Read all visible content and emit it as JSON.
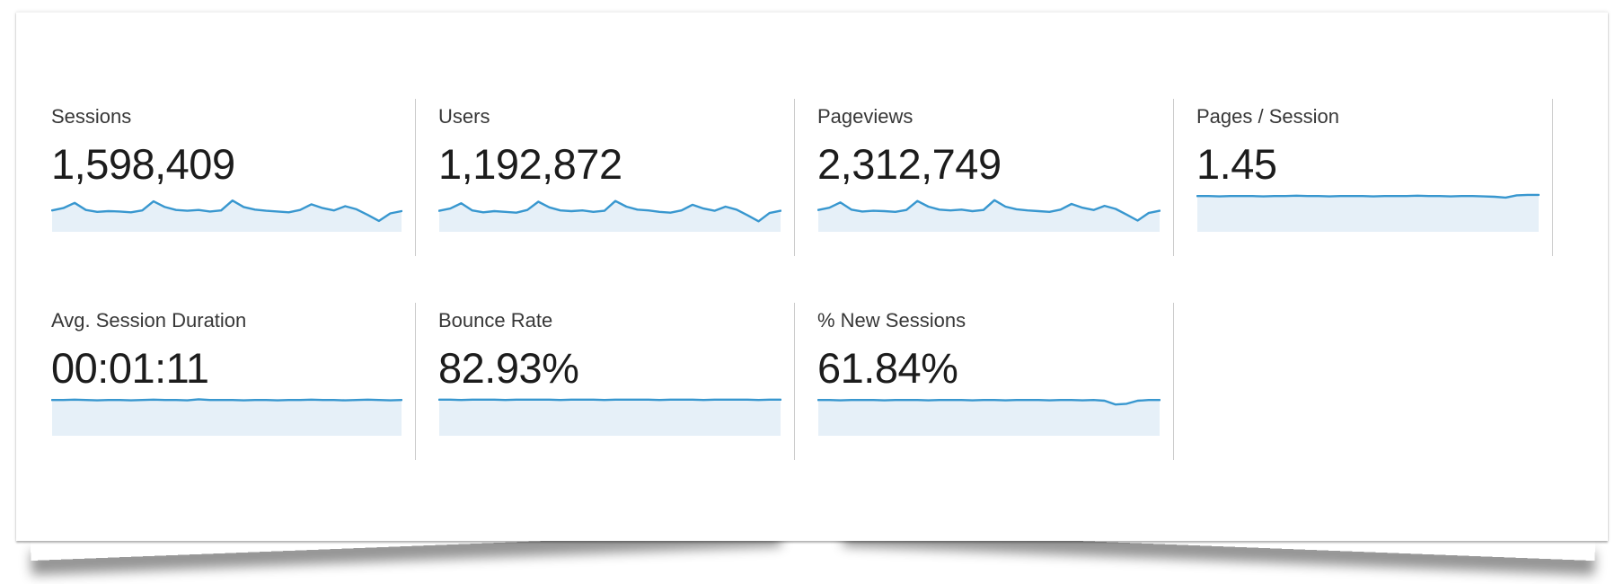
{
  "card": {
    "name": "audience-overview-metrics",
    "rows": [
      {
        "metrics": [
          {
            "id": "sessions",
            "label": "Sessions",
            "value": "1,598,409",
            "spark": [
              0.52,
              0.58,
              0.72,
              0.53,
              0.48,
              0.5,
              0.49,
              0.47,
              0.52,
              0.76,
              0.61,
              0.53,
              0.51,
              0.53,
              0.49,
              0.52,
              0.78,
              0.61,
              0.54,
              0.51,
              0.49,
              0.47,
              0.53,
              0.68,
              0.58,
              0.52,
              0.63,
              0.55,
              0.4,
              0.24,
              0.44,
              0.5
            ]
          },
          {
            "id": "users",
            "label": "Users",
            "value": "1,192,872",
            "spark": [
              0.51,
              0.57,
              0.71,
              0.52,
              0.47,
              0.5,
              0.48,
              0.46,
              0.53,
              0.75,
              0.6,
              0.52,
              0.5,
              0.52,
              0.48,
              0.51,
              0.77,
              0.62,
              0.54,
              0.52,
              0.48,
              0.46,
              0.52,
              0.67,
              0.57,
              0.51,
              0.62,
              0.54,
              0.39,
              0.23,
              0.45,
              0.51
            ]
          },
          {
            "id": "pageviews",
            "label": "Pageviews",
            "value": "2,312,749",
            "spark": [
              0.53,
              0.59,
              0.73,
              0.54,
              0.49,
              0.51,
              0.5,
              0.48,
              0.53,
              0.77,
              0.62,
              0.54,
              0.52,
              0.54,
              0.5,
              0.53,
              0.79,
              0.62,
              0.55,
              0.52,
              0.5,
              0.48,
              0.54,
              0.69,
              0.59,
              0.53,
              0.64,
              0.56,
              0.41,
              0.25,
              0.45,
              0.51
            ]
          },
          {
            "id": "pages-per-session",
            "label": "Pages / Session",
            "value": "1.45",
            "spark": [
              0.9,
              0.9,
              0.89,
              0.9,
              0.9,
              0.9,
              0.89,
              0.9,
              0.9,
              0.91,
              0.9,
              0.9,
              0.89,
              0.9,
              0.9,
              0.9,
              0.89,
              0.9,
              0.9,
              0.9,
              0.91,
              0.9,
              0.9,
              0.89,
              0.9,
              0.9,
              0.89,
              0.88,
              0.86,
              0.92,
              0.93,
              0.93
            ]
          }
        ]
      },
      {
        "metrics": [
          {
            "id": "avg-session-duration",
            "label": "Avg. Session Duration",
            "value": "00:01:11",
            "spark": [
              0.9,
              0.9,
              0.91,
              0.9,
              0.89,
              0.9,
              0.9,
              0.89,
              0.9,
              0.91,
              0.9,
              0.9,
              0.89,
              0.92,
              0.9,
              0.9,
              0.9,
              0.89,
              0.9,
              0.9,
              0.89,
              0.9,
              0.9,
              0.91,
              0.9,
              0.9,
              0.89,
              0.9,
              0.91,
              0.9,
              0.89,
              0.9
            ]
          },
          {
            "id": "bounce-rate",
            "label": "Bounce Rate",
            "value": "82.93%",
            "spark": [
              0.91,
              0.91,
              0.9,
              0.91,
              0.91,
              0.91,
              0.9,
              0.91,
              0.91,
              0.91,
              0.91,
              0.9,
              0.91,
              0.91,
              0.91,
              0.9,
              0.91,
              0.91,
              0.91,
              0.91,
              0.9,
              0.91,
              0.91,
              0.91,
              0.9,
              0.91,
              0.91,
              0.91,
              0.91,
              0.9,
              0.91,
              0.91
            ]
          },
          {
            "id": "percent-new-sessions",
            "label": "% New Sessions",
            "value": "61.84%",
            "spark": [
              0.9,
              0.9,
              0.89,
              0.9,
              0.9,
              0.9,
              0.89,
              0.9,
              0.9,
              0.9,
              0.89,
              0.9,
              0.9,
              0.9,
              0.89,
              0.9,
              0.9,
              0.89,
              0.9,
              0.9,
              0.9,
              0.89,
              0.9,
              0.9,
              0.89,
              0.9,
              0.88,
              0.78,
              0.8,
              0.88,
              0.9,
              0.9
            ]
          }
        ]
      }
    ]
  },
  "colors": {
    "spark_line": "#3897cf",
    "spark_fill": "#e6f0f8",
    "divider": "#cbcbcb",
    "label_text": "#373737",
    "value_text": "#1c1c1c"
  }
}
